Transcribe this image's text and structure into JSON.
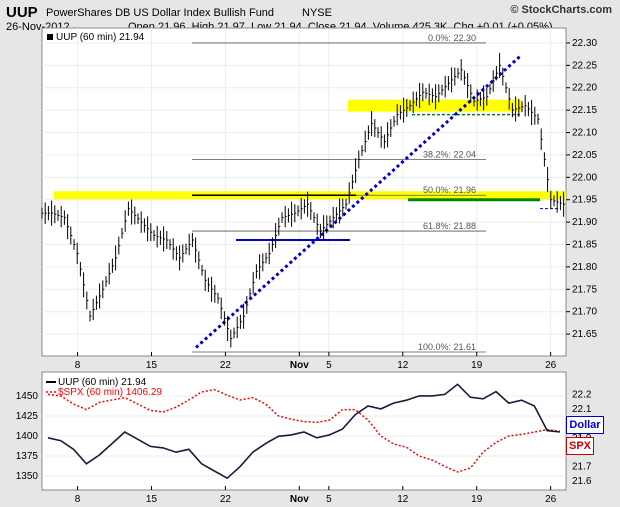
{
  "header": {
    "symbol": "UUP",
    "name": "PowerShares DB US Dollar Index Bullish Fund",
    "exchange": "NYSE",
    "date": "26-Nov-2012",
    "open_label": "Open",
    "open": "21.96",
    "high_label": "High",
    "high": "21.97",
    "low_label": "Low",
    "low": "21.94",
    "close_label": "Close",
    "close": "21.94",
    "volume_label": "Volume",
    "volume": "425.3K",
    "chg_label": "Chg",
    "chg": "+0.01 (+0.05%)",
    "brand": "© StockCharts.com"
  },
  "colors": {
    "panel_bg": "#ffffff",
    "page_bg": "#e6e6e6",
    "price": "#000000",
    "highlight": "#ffff00",
    "trendline": "#0000cc",
    "support": "#008800",
    "fib": "#555555",
    "spx": "#ff0000",
    "dollar_label": "#0000cc"
  },
  "chart_data": [
    {
      "type": "ohlc",
      "legend": "UUP (60 min) 21.94",
      "ylim": [
        21.61,
        22.32
      ],
      "yticks": [
        21.65,
        21.7,
        21.75,
        21.8,
        21.85,
        21.9,
        21.95,
        22.0,
        22.05,
        22.1,
        22.15,
        22.2,
        22.25,
        22.3
      ],
      "xtick_labels": [
        "8",
        "15",
        "22",
        "Nov",
        "5",
        "12",
        "19",
        "26"
      ],
      "xtick_pos": [
        2,
        7,
        12,
        17,
        19,
        24,
        29,
        34
      ],
      "bar_count": 41,
      "closes": [
        21.92,
        21.91,
        21.83,
        21.69,
        21.75,
        21.82,
        21.93,
        21.9,
        21.87,
        21.86,
        21.82,
        21.86,
        21.77,
        21.73,
        21.64,
        21.69,
        21.79,
        21.83,
        21.91,
        21.92,
        21.94,
        21.88,
        21.91,
        21.94,
        22.04,
        22.12,
        22.08,
        22.14,
        22.16,
        22.19,
        22.18,
        22.21,
        22.24,
        22.17,
        22.18,
        22.25,
        22.15,
        22.16,
        22.13,
        21.95,
        21.94
      ],
      "fib_levels": [
        {
          "label": "0.0%: 22.30",
          "value": 22.3
        },
        {
          "label": "38.2%: 22.04",
          "value": 22.04
        },
        {
          "label": "50.0%: 21.96",
          "value": 21.96
        },
        {
          "label": "61.8%: 21.88",
          "value": 21.88
        },
        {
          "label": "100.0%: 21.61",
          "value": 21.61
        }
      ],
      "highlight_zones": [
        21.96,
        22.16
      ],
      "trendline": {
        "from": [
          21.62,
          21.62
        ],
        "to": [
          22.27,
          22.27
        ]
      }
    },
    {
      "type": "line",
      "series": [
        {
          "name": "UUP (60 min) 21.94",
          "axis": "right",
          "ylim": [
            21.58,
            22.3
          ],
          "values": [
            21.9,
            21.88,
            21.82,
            21.72,
            21.78,
            21.86,
            21.94,
            21.89,
            21.84,
            21.83,
            21.8,
            21.82,
            21.72,
            21.67,
            21.62,
            21.7,
            21.8,
            21.86,
            21.91,
            21.92,
            21.94,
            21.9,
            21.92,
            21.96,
            22.06,
            22.12,
            22.1,
            22.14,
            22.16,
            22.19,
            22.19,
            22.2,
            22.27,
            22.18,
            22.17,
            22.22,
            22.14,
            22.16,
            22.12,
            21.95,
            21.94
          ]
        },
        {
          "name": "$SPX (60 min) 1406.29",
          "axis": "left",
          "ylim": [
            1340,
            1470
          ],
          "values": [
            1452,
            1450,
            1440,
            1433,
            1442,
            1445,
            1448,
            1440,
            1432,
            1430,
            1436,
            1445,
            1455,
            1458,
            1451,
            1445,
            1448,
            1440,
            1425,
            1421,
            1418,
            1417,
            1420,
            1433,
            1433,
            1420,
            1400,
            1390,
            1386,
            1375,
            1370,
            1362,
            1355,
            1360,
            1380,
            1392,
            1400,
            1402,
            1405,
            1408,
            1406
          ]
        }
      ],
      "yticks_left": [
        1350,
        1375,
        1400,
        1425,
        1450
      ],
      "yticks_right": [
        21.6,
        21.7,
        21.8,
        21.9,
        22.0,
        22.1,
        22.2
      ],
      "xtick_labels": [
        "8",
        "15",
        "22",
        "Nov",
        "5",
        "12",
        "19",
        "26"
      ],
      "xtick_pos": [
        2,
        7,
        12,
        17,
        19,
        24,
        29,
        34
      ],
      "tags": [
        {
          "label": "Dollar"
        },
        {
          "label": "SPX"
        }
      ]
    }
  ]
}
